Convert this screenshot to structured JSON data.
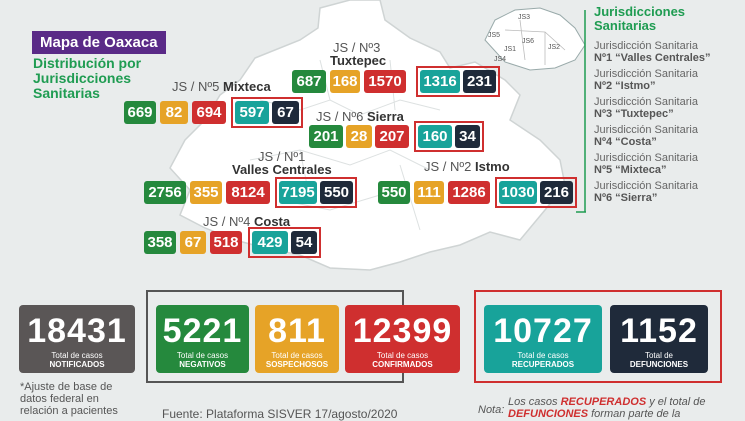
{
  "header": {
    "title": "Mapa de Oaxaca",
    "subtitle": "Distribución por Jurisdicciones Sanitarias"
  },
  "legend": {
    "title": "Jurisdicciones Sanitarias",
    "mini_labels": [
      "JS1",
      "JS2",
      "JS3",
      "JS4",
      "JS5",
      "JS6"
    ],
    "items": [
      {
        "line1": "Jurisdicción Sanitaria",
        "line2": "Nº1 “Valles Centrales”"
      },
      {
        "line1": "Jurisdicción Sanitaria",
        "line2": "Nº2 “Istmo”"
      },
      {
        "line1": "Jurisdicción Sanitaria",
        "line2": "Nº3 “Tuxtepec”"
      },
      {
        "line1": "Jurisdicción Sanitaria",
        "line2": "Nº4 “Costa”"
      },
      {
        "line1": "Jurisdicción Sanitaria",
        "line2": "Nº5 “Mixteca”"
      },
      {
        "line1": "Jurisdicción Sanitaria",
        "line2": "Nº6 “Sierra”"
      }
    ]
  },
  "regions": {
    "tuxtepec": {
      "label1": "JS / Nº3",
      "label2": "Tuxtepec",
      "neg": "687",
      "sos": "168",
      "conf": "1570",
      "rec": "1316",
      "def": "231"
    },
    "mixteca": {
      "label1": "JS / Nº5",
      "label2": "Mixteca",
      "neg": "669",
      "sos": "82",
      "conf": "694",
      "rec": "597",
      "def": "67"
    },
    "sierra": {
      "label1": "JS / Nº6",
      "label2": "Sierra",
      "neg": "201",
      "sos": "28",
      "conf": "207",
      "rec": "160",
      "def": "34"
    },
    "valles": {
      "label1": "JS / Nº1",
      "label2": "Valles Centrales",
      "neg": "2756",
      "sos": "355",
      "conf": "8124",
      "rec": "7195",
      "def": "550"
    },
    "istmo": {
      "label1": "JS / Nº2",
      "label2": "Istmo",
      "neg": "550",
      "sos": "111",
      "conf": "1286",
      "rec": "1030",
      "def": "216"
    },
    "costa": {
      "label1": "JS / Nº4",
      "label2": "Costa",
      "neg": "358",
      "sos": "67",
      "conf": "518",
      "rec": "429",
      "def": "54"
    }
  },
  "totals": [
    {
      "value": "18431",
      "line1": "Total de casos",
      "line2": "NOTIFICADOS",
      "color": "#5a5656"
    },
    {
      "value": "5221",
      "line1": "Total de casos",
      "line2": "NEGATIVOS",
      "color": "#25893d"
    },
    {
      "value": "811",
      "line1": "Total de casos",
      "line2": "SOSPECHOSOS",
      "color": "#e6a327"
    },
    {
      "value": "12399",
      "line1": "Total de casos",
      "line2": "CONFIRMADOS",
      "color": "#cf2f2f"
    },
    {
      "value": "10727",
      "line1": "Total de casos",
      "line2": "RECUPERADOS",
      "color": "#18a39a"
    },
    {
      "value": "1152",
      "line1": "Total de",
      "line2": "DEFUNCIONES",
      "color": "#1f2a3a"
    }
  ],
  "footer": {
    "note_left": "*Ajuste de base de datos federal en relación a pacientes",
    "source": "Fuente: Plataforma SISVER 17/agosto/2020",
    "nota_label": "Nota:",
    "note_right_1": "Los casos",
    "note_right_rec": "RECUPERADOS",
    "note_right_2": "y el total de",
    "note_right_def": "DEFUNCIONES",
    "note_right_3": "forman parte de la"
  }
}
